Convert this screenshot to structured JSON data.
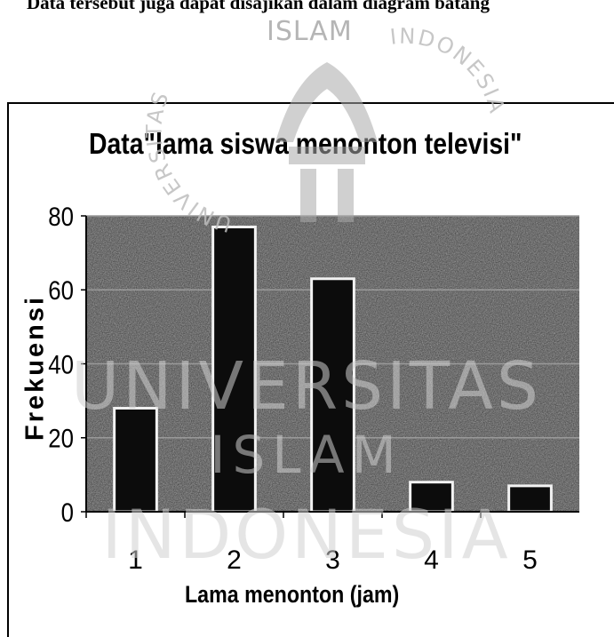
{
  "lead_text": "Data tersebut juga dapat disajikan dalam diagram batang",
  "watermark": {
    "top_text": "ISLAM",
    "left_arc": "UNIVERSITAS",
    "right_arc": "INDONESIA",
    "line1": "UNIVERSITAS",
    "line2": "ISLAM",
    "line3": "INDONESIA"
  },
  "colors": {
    "plot_bg": "#2e2e2e",
    "bar_fill": "#0c0c0c",
    "bar_edge": "#f2f2f2",
    "gridline": "#9a9a9a",
    "watermark": "#b8b8b8"
  },
  "chart_data": {
    "type": "bar",
    "title": "Data\"lama siswa menonton televisi\"",
    "xlabel": "Lama menonton (jam)",
    "ylabel": "Frekuensi",
    "categories": [
      "1",
      "2",
      "3",
      "4",
      "5"
    ],
    "values": [
      28,
      77,
      63,
      8,
      7
    ],
    "ylim": [
      0,
      80
    ],
    "yticks": [
      "0",
      "20",
      "40",
      "60",
      "80"
    ],
    "grid": true,
    "legend": "none"
  }
}
